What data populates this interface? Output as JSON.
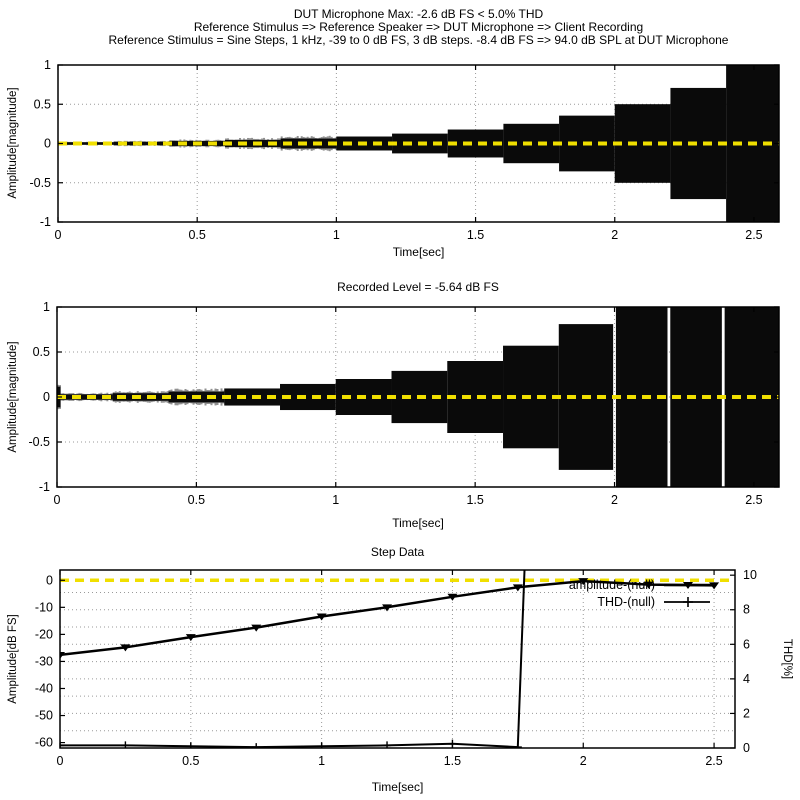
{
  "colors": {
    "waveform": "#0a0a0a",
    "series_line": "#000000",
    "zero_line": "#f0df00",
    "grid": "#9a9a9a",
    "text": "#000000",
    "background": "#ffffff"
  },
  "chart_data": [
    {
      "type": "area",
      "id": "stimulus-waveform",
      "title_lines": [
        "DUT Microphone Max: -2.6 dB FS < 5.0% THD",
        "Reference Stimulus => Reference Speaker => DUT Microphone => Client Recording",
        "Reference Stimulus = Sine Steps, 1 kHz, -39 to 0 dB FS, 3 dB steps. -8.4 dB FS => 94.0 dB SPL at DUT Microphone"
      ],
      "xlabel": "Time[sec]",
      "ylabel": "Amplitude[magnitude]",
      "xlim": [
        0,
        2.59
      ],
      "ylim": [
        -1,
        1
      ],
      "xticks": [
        0,
        0.5,
        1,
        1.5,
        2,
        2.5
      ],
      "yticks": [
        -1,
        -0.5,
        0,
        0.5,
        1
      ],
      "zero_line": 0,
      "grid": true,
      "steps": [
        {
          "t0": 0.0,
          "t1": 0.2,
          "amp": 0.016,
          "noise": true
        },
        {
          "t0": 0.2,
          "t1": 0.4,
          "amp": 0.022,
          "noise": true
        },
        {
          "t0": 0.4,
          "t1": 0.6,
          "amp": 0.032,
          "noise": true
        },
        {
          "t0": 0.6,
          "t1": 0.8,
          "amp": 0.045,
          "noise": true
        },
        {
          "t0": 0.8,
          "t1": 1.0,
          "amp": 0.063,
          "noise": true
        },
        {
          "t0": 1.0,
          "t1": 1.2,
          "amp": 0.089
        },
        {
          "t0": 1.2,
          "t1": 1.4,
          "amp": 0.126
        },
        {
          "t0": 1.4,
          "t1": 1.6,
          "amp": 0.178
        },
        {
          "t0": 1.6,
          "t1": 1.8,
          "amp": 0.251
        },
        {
          "t0": 1.8,
          "t1": 2.0,
          "amp": 0.355
        },
        {
          "t0": 2.0,
          "t1": 2.2,
          "amp": 0.501
        },
        {
          "t0": 2.2,
          "t1": 2.4,
          "amp": 0.708
        },
        {
          "t0": 2.4,
          "t1": 2.59,
          "amp": 1.0
        }
      ]
    },
    {
      "type": "area",
      "id": "recorded-waveform",
      "title_lines": [
        "Recorded Level = -5.64 dB FS"
      ],
      "xlabel": "Time[sec]",
      "ylabel": "Amplitude[magnitude]",
      "xlim": [
        0,
        2.59
      ],
      "ylim": [
        -1,
        1
      ],
      "xticks": [
        0,
        0.5,
        1,
        1.5,
        2,
        2.5
      ],
      "yticks": [
        -1,
        -0.5,
        0,
        0.5,
        1
      ],
      "zero_line": 0,
      "grid": true,
      "steps": [
        {
          "t0": 0.0,
          "t1": 0.012,
          "amp": 0.115,
          "noise": true
        },
        {
          "t0": 0.012,
          "t1": 0.2,
          "amp": 0.03,
          "noise": true
        },
        {
          "t0": 0.2,
          "t1": 0.4,
          "amp": 0.042,
          "noise": true
        },
        {
          "t0": 0.4,
          "t1": 0.6,
          "amp": 0.06,
          "noise": true
        },
        {
          "t0": 0.6,
          "t1": 0.8,
          "amp": 0.095
        },
        {
          "t0": 0.8,
          "t1": 1.0,
          "amp": 0.145
        },
        {
          "t0": 1.0,
          "t1": 1.2,
          "amp": 0.2
        },
        {
          "t0": 1.2,
          "t1": 1.4,
          "amp": 0.29
        },
        {
          "t0": 1.4,
          "t1": 1.6,
          "amp": 0.4
        },
        {
          "t0": 1.6,
          "t1": 1.8,
          "amp": 0.57
        },
        {
          "t0": 1.8,
          "t1": 1.995,
          "amp": 0.81
        },
        {
          "t0": 2.005,
          "t1": 2.19,
          "amp": 1.0
        },
        {
          "t0": 2.2,
          "t1": 2.385,
          "amp": 1.0
        },
        {
          "t0": 2.395,
          "t1": 2.59,
          "amp": 1.0
        }
      ]
    },
    {
      "type": "line",
      "id": "step-data",
      "title": "Step Data",
      "xlabel": "Time[sec]",
      "ylabel_left": "Amplitude[dB FS]",
      "ylabel_right": "THD[%]",
      "xlim": [
        0,
        2.58
      ],
      "ylim_left": [
        -62,
        3.8
      ],
      "ylim_right": [
        0,
        10.3
      ],
      "xticks": [
        0,
        0.5,
        1,
        1.5,
        2,
        2.5
      ],
      "yticks_left": [
        0,
        -10,
        -20,
        -30,
        -40,
        -50,
        -60
      ],
      "yticks_right": [
        10,
        8,
        6,
        4,
        2,
        0
      ],
      "grid_right_minor": [
        1,
        2,
        3,
        4,
        5,
        6,
        7,
        8,
        9
      ],
      "zero_line": 0,
      "legend_position": "top-right",
      "series": [
        {
          "name": "amplitude-(null)",
          "axis": "left",
          "marker": "triangle-down",
          "x": [
            0,
            0.25,
            0.5,
            0.75,
            1.0,
            1.25,
            1.5,
            1.75,
            2.0,
            2.25,
            2.5
          ],
          "y": [
            -27.6,
            -24.8,
            -21.0,
            -17.5,
            -13.4,
            -10.0,
            -6.1,
            -2.6,
            -0.3,
            -1.6,
            -1.9
          ]
        },
        {
          "name": "THD-(null)",
          "axis": "right",
          "marker": "plus",
          "x": [
            0,
            0.25,
            0.5,
            0.75,
            1.0,
            1.25,
            1.5,
            1.75,
            2.0,
            2.25,
            2.5
          ],
          "y": [
            0.15,
            0.15,
            0.1,
            0.05,
            0.1,
            0.15,
            0.25,
            0.05,
            100,
            100,
            100
          ],
          "clipped_above": 10.3
        }
      ]
    }
  ]
}
